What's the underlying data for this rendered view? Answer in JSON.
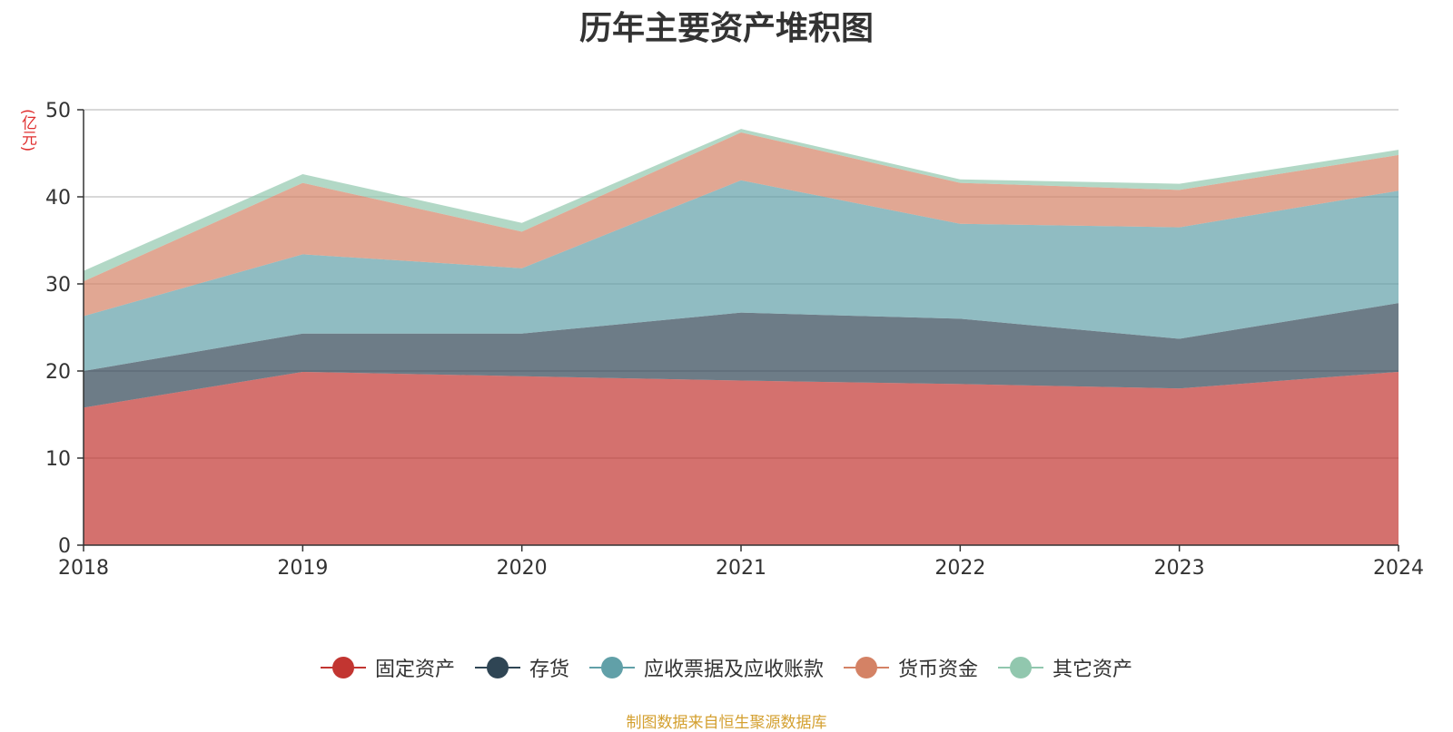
{
  "chart_data": {
    "type": "area",
    "stacked": true,
    "title": "历年主要资产堆积图",
    "unit_label": "(亿元)",
    "x": [
      "2018",
      "2019",
      "2020",
      "2021",
      "2022",
      "2023",
      "2024"
    ],
    "ylim": [
      0,
      50
    ],
    "yticks": [
      "0",
      "10",
      "20",
      "30",
      "40",
      "50"
    ],
    "grid": true,
    "legend_position": "bottom",
    "series": [
      {
        "name": "固定资产",
        "color": "#c23531",
        "values": [
          15.8,
          19.9,
          19.4,
          18.9,
          18.5,
          18.0,
          19.9
        ]
      },
      {
        "name": "存货",
        "color": "#2f4554",
        "values": [
          4.2,
          4.4,
          4.9,
          7.8,
          7.5,
          5.7,
          7.9
        ]
      },
      {
        "name": "应收票据及应收账款",
        "color": "#61a0a8",
        "values": [
          6.3,
          9.1,
          7.5,
          15.2,
          10.9,
          12.8,
          12.9
        ]
      },
      {
        "name": "货币资金",
        "color": "#d48265",
        "values": [
          4.0,
          8.2,
          4.2,
          5.5,
          4.7,
          4.3,
          4.1
        ]
      },
      {
        "name": "其它资产",
        "color": "#91c7ae",
        "values": [
          1.2,
          1.0,
          1.0,
          0.4,
          0.4,
          0.7,
          0.6
        ]
      }
    ]
  },
  "footer": {
    "source": "制图数据来自恒生聚源数据库"
  }
}
